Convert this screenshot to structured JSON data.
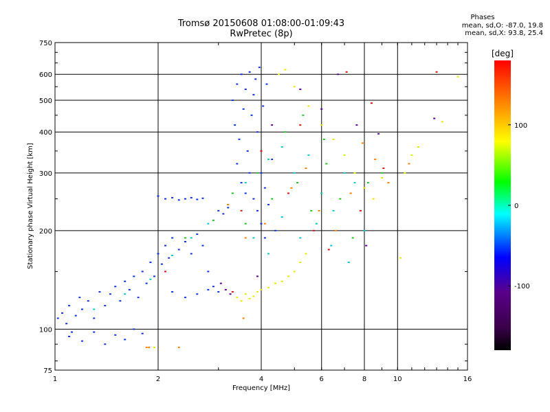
{
  "header": {
    "title": "Tromsø 20150608 01:08:00-01:09:43",
    "subtitle": "RwPretec (8p)"
  },
  "phase_info": {
    "label": "Phases",
    "line1": "mean, sd,O: -87.0, 19.8",
    "line2": "mean, sd,X: 93.8, 25.4"
  },
  "chart_data": {
    "type": "scatter",
    "title": "Tromsø 20150608 01:08:00-01:09:43",
    "subtitle": "RwPretec (8p)",
    "xlabel": "Frequency [MHz]",
    "ylabel": "Stationary phase Virtual Height [km]",
    "x_scale": "log",
    "y_scale": "log",
    "xlim": [
      1,
      16
    ],
    "ylim": [
      75,
      750
    ],
    "x_ticks": [
      1,
      2,
      4,
      6,
      8,
      10,
      16
    ],
    "x_tick_labels": [
      "1",
      "2",
      "4",
      "6",
      "8",
      "10",
      "16"
    ],
    "y_ticks": [
      75,
      100,
      200,
      300,
      400,
      500,
      600,
      750
    ],
    "y_tick_labels": [
      "75",
      "100",
      "200",
      "300",
      "400",
      "500",
      "600",
      "750"
    ],
    "grid": true,
    "colorbar": {
      "label": "[deg]",
      "range": [
        -180,
        180
      ],
      "ticks": [
        100,
        0,
        -100
      ],
      "tick_labels": [
        "100",
        "0",
        "-100"
      ],
      "colors": [
        "#000000",
        "#5a008a",
        "#0000ff",
        "#00ffff",
        "#00ff00",
        "#ffff00",
        "#ff8000",
        "#ff0000"
      ]
    },
    "series": [
      {
        "description_color": "#1030e0",
        "points": [
          [
            1.02,
            108
          ],
          [
            1.05,
            112
          ],
          [
            1.08,
            104
          ],
          [
            1.1,
            118
          ],
          [
            1.12,
            98
          ],
          [
            1.15,
            110
          ],
          [
            1.18,
            125
          ],
          [
            1.2,
            115
          ],
          [
            1.25,
            122
          ],
          [
            1.3,
            108
          ],
          [
            1.35,
            130
          ],
          [
            1.4,
            118
          ],
          [
            1.45,
            128
          ],
          [
            1.5,
            135
          ],
          [
            1.55,
            122
          ],
          [
            1.6,
            140
          ],
          [
            1.65,
            132
          ],
          [
            1.7,
            145
          ],
          [
            1.75,
            125
          ],
          [
            1.8,
            150
          ],
          [
            1.85,
            138
          ],
          [
            1.9,
            160
          ],
          [
            1.95,
            145
          ],
          [
            2.0,
            170
          ],
          [
            2.05,
            158
          ],
          [
            2.1,
            180
          ],
          [
            2.15,
            165
          ],
          [
            2.2,
            190
          ],
          [
            2.3,
            175
          ],
          [
            2.4,
            185
          ],
          [
            2.5,
            170
          ],
          [
            2.6,
            195
          ],
          [
            2.7,
            180
          ],
          [
            2.8,
            150
          ],
          [
            2.9,
            135
          ],
          [
            3.0,
            130
          ],
          [
            2.2,
            130
          ],
          [
            2.4,
            125
          ],
          [
            2.6,
            128
          ],
          [
            2.8,
            132
          ],
          [
            1.1,
            95
          ],
          [
            1.2,
            92
          ],
          [
            1.3,
            98
          ],
          [
            1.4,
            90
          ],
          [
            1.5,
            96
          ],
          [
            1.6,
            93
          ],
          [
            1.7,
            100
          ],
          [
            1.8,
            97
          ],
          [
            2.0,
            255
          ],
          [
            2.1,
            250
          ],
          [
            2.2,
            252
          ],
          [
            2.3,
            248
          ],
          [
            2.4,
            250
          ],
          [
            2.5,
            252
          ],
          [
            2.6,
            249
          ],
          [
            2.7,
            251
          ],
          [
            3.0,
            230
          ],
          [
            3.1,
            225
          ],
          [
            3.2,
            235
          ],
          [
            3.3,
            500
          ],
          [
            3.35,
            420
          ],
          [
            3.4,
            560
          ],
          [
            3.45,
            380
          ],
          [
            3.5,
            600
          ],
          [
            3.55,
            470
          ],
          [
            3.6,
            540
          ],
          [
            3.65,
            350
          ],
          [
            3.7,
            610
          ],
          [
            3.75,
            450
          ],
          [
            3.8,
            520
          ],
          [
            3.85,
            580
          ],
          [
            3.9,
            400
          ],
          [
            3.95,
            630
          ],
          [
            4.0,
            300
          ],
          [
            4.05,
            480
          ],
          [
            4.1,
            270
          ],
          [
            4.15,
            560
          ],
          [
            4.2,
            240
          ],
          [
            4.3,
            330
          ],
          [
            4.4,
            200
          ],
          [
            3.4,
            320
          ],
          [
            3.5,
            280
          ],
          [
            3.6,
            260
          ],
          [
            3.7,
            300
          ],
          [
            3.8,
            250
          ],
          [
            3.9,
            230
          ],
          [
            4.0,
            210
          ],
          [
            4.1,
            190
          ]
        ]
      },
      {
        "description_color": "#00c8c8",
        "points": [
          [
            1.3,
            115
          ],
          [
            1.6,
            128
          ],
          [
            1.9,
            142
          ],
          [
            2.2,
            168
          ],
          [
            2.5,
            190
          ],
          [
            2.8,
            210
          ],
          [
            3.2,
            240
          ],
          [
            3.6,
            280
          ],
          [
            4.2,
            330
          ],
          [
            4.6,
            360
          ],
          [
            5.0,
            300
          ],
          [
            5.5,
            340
          ],
          [
            6.0,
            260
          ],
          [
            6.5,
            230
          ],
          [
            7.0,
            300
          ],
          [
            7.5,
            280
          ],
          [
            3.8,
            190
          ],
          [
            4.2,
            170
          ],
          [
            4.6,
            220
          ],
          [
            5.2,
            190
          ],
          [
            5.8,
            210
          ],
          [
            6.4,
            180
          ],
          [
            7.2,
            160
          ],
          [
            8.0,
            200
          ]
        ]
      },
      {
        "description_color": "#20c020",
        "points": [
          [
            3.3,
            260
          ],
          [
            3.6,
            210
          ],
          [
            3.9,
            300
          ],
          [
            4.3,
            250
          ],
          [
            4.7,
            400
          ],
          [
            5.1,
            280
          ],
          [
            5.6,
            230
          ],
          [
            6.2,
            320
          ],
          [
            6.8,
            250
          ],
          [
            7.4,
            190
          ],
          [
            8.2,
            280
          ],
          [
            9.0,
            300
          ],
          [
            2.4,
            190
          ],
          [
            2.9,
            215
          ],
          [
            5.3,
            450
          ],
          [
            6.1,
            380
          ]
        ]
      },
      {
        "description_color": "#e8e800",
        "points": [
          [
            3.4,
            125
          ],
          [
            3.5,
            122
          ],
          [
            3.6,
            128
          ],
          [
            3.7,
            124
          ],
          [
            3.8,
            126
          ],
          [
            3.9,
            130
          ],
          [
            4.0,
            132
          ],
          [
            4.2,
            134
          ],
          [
            4.4,
            138
          ],
          [
            4.6,
            140
          ],
          [
            4.8,
            145
          ],
          [
            5.0,
            150
          ],
          [
            5.2,
            160
          ],
          [
            5.4,
            170
          ],
          [
            4.5,
            600
          ],
          [
            4.7,
            620
          ],
          [
            5.0,
            550
          ],
          [
            5.5,
            480
          ],
          [
            6.0,
            420
          ],
          [
            6.5,
            380
          ],
          [
            7.0,
            340
          ],
          [
            7.5,
            300
          ],
          [
            8.0,
            270
          ],
          [
            8.5,
            250
          ],
          [
            9.0,
            290
          ],
          [
            10.5,
            300
          ],
          [
            11.0,
            340
          ],
          [
            11.5,
            360
          ],
          [
            10.2,
            165
          ],
          [
            13.5,
            430
          ],
          [
            15.0,
            590
          ],
          [
            1.95,
            88
          ]
        ]
      },
      {
        "description_color": "#ff8000",
        "points": [
          [
            1.85,
            88
          ],
          [
            1.88,
            88
          ],
          [
            2.3,
            88
          ],
          [
            3.2,
            240
          ],
          [
            3.6,
            190
          ],
          [
            4.1,
            210
          ],
          [
            4.9,
            270
          ],
          [
            5.4,
            310
          ],
          [
            5.9,
            230
          ],
          [
            6.6,
            200
          ],
          [
            7.3,
            260
          ],
          [
            8.6,
            330
          ],
          [
            9.4,
            280
          ],
          [
            10.8,
            320
          ],
          [
            3.55,
            108
          ],
          [
            7.9,
            370
          ]
        ]
      },
      {
        "description_color": "#e01010",
        "points": [
          [
            3.5,
            230
          ],
          [
            4.0,
            350
          ],
          [
            4.8,
            260
          ],
          [
            5.2,
            420
          ],
          [
            5.7,
            200
          ],
          [
            6.3,
            175
          ],
          [
            7.1,
            610
          ],
          [
            7.8,
            230
          ],
          [
            8.4,
            490
          ],
          [
            9.1,
            310
          ],
          [
            3.3,
            130
          ],
          [
            2.1,
            150
          ],
          [
            13.0,
            610
          ]
        ]
      },
      {
        "description_color": "#5a008a",
        "points": [
          [
            3.05,
            138
          ],
          [
            3.15,
            132
          ],
          [
            3.25,
            128
          ],
          [
            3.9,
            145
          ],
          [
            4.3,
            420
          ],
          [
            6.7,
            600
          ],
          [
            8.8,
            395
          ],
          [
            12.8,
            440
          ],
          [
            5.2,
            540
          ],
          [
            6.0,
            470
          ],
          [
            7.6,
            420
          ],
          [
            8.1,
            180
          ]
        ]
      }
    ]
  }
}
